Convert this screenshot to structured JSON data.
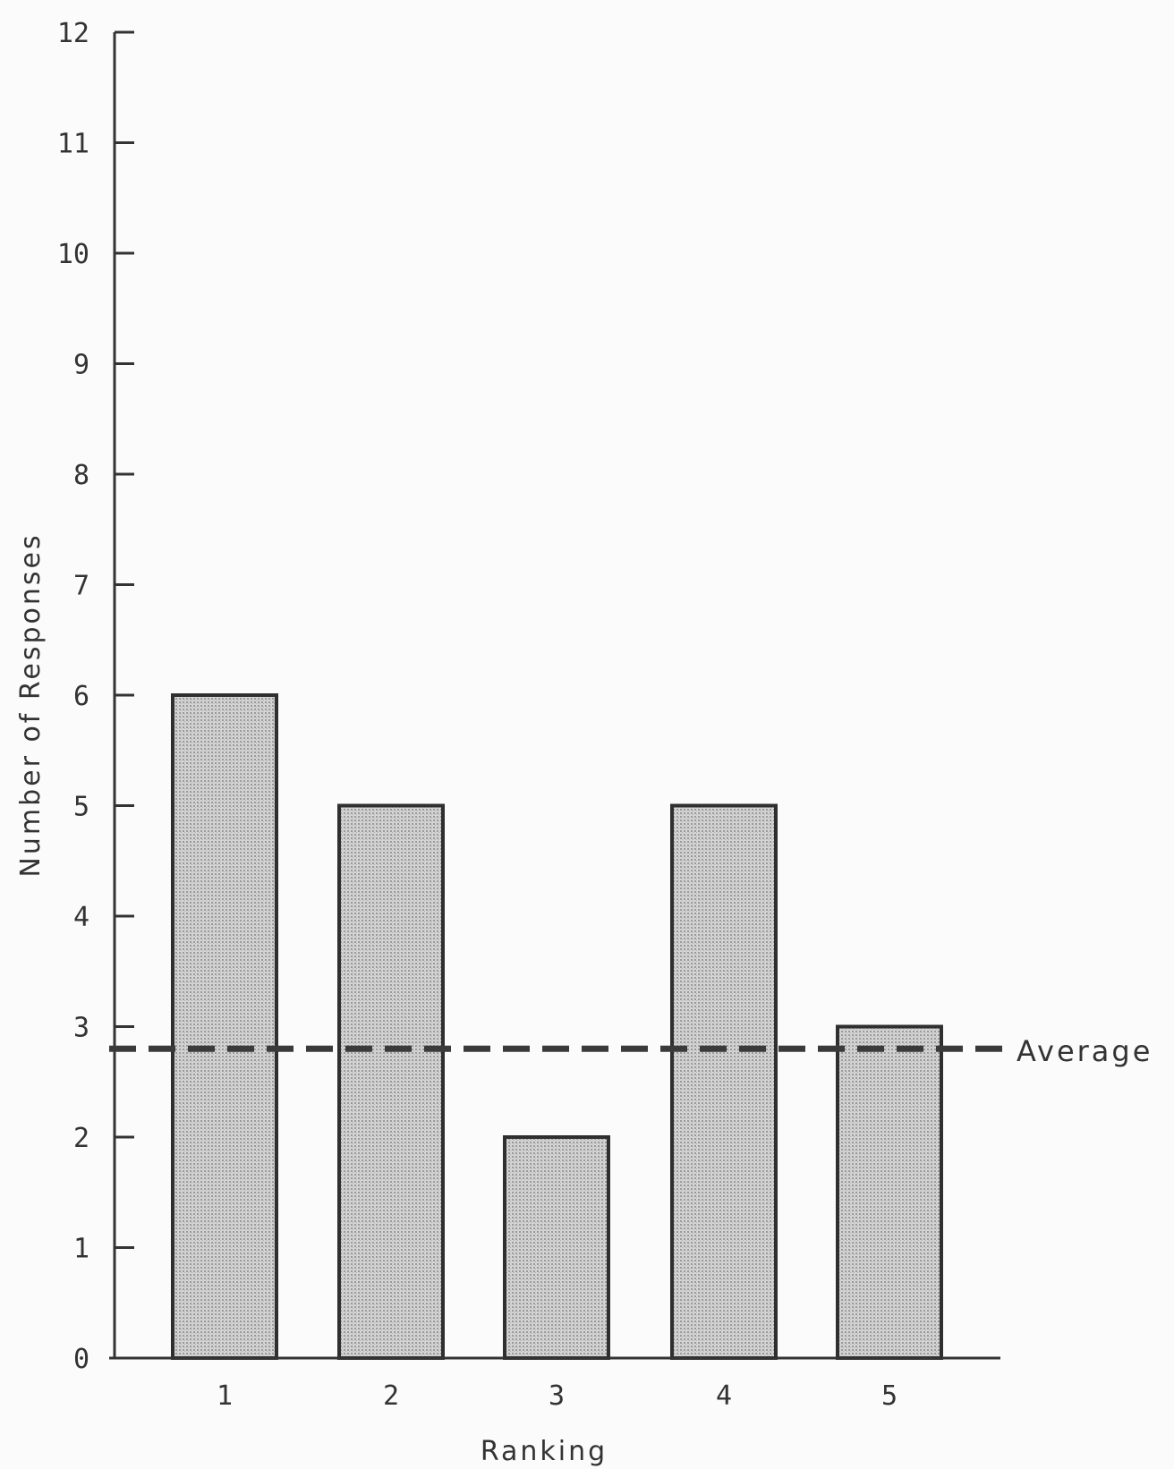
{
  "chart_data": {
    "type": "bar",
    "categories": [
      "1",
      "2",
      "3",
      "4",
      "5"
    ],
    "values": [
      6,
      5,
      2,
      5,
      3
    ],
    "xlabel": "Ranking",
    "ylabel": "Number of Responses",
    "ylim": [
      0,
      12
    ],
    "yticks": [
      0,
      1,
      2,
      3,
      4,
      5,
      6,
      7,
      8,
      9,
      10,
      11,
      12
    ],
    "grid": false,
    "reference_line": {
      "label": "Average",
      "value": 2.8,
      "style": "dashed"
    },
    "colors": {
      "bar_fill": "#c9c9c9",
      "bar_stroke": "#2f2f2f",
      "axis": "#333333",
      "reference_line": "#3a3a3a"
    }
  }
}
